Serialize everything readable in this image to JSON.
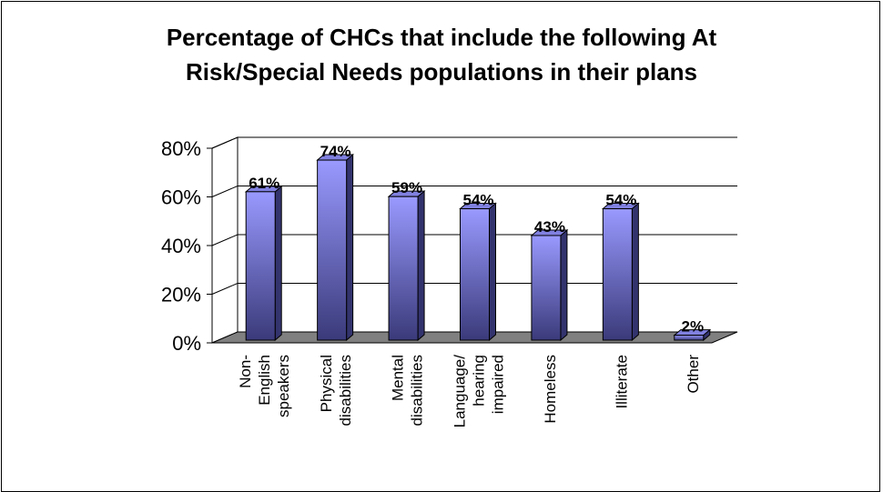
{
  "chart_data": {
    "type": "bar",
    "title_lines": [
      "Percentage of CHCs that include the following At",
      "Risk/Special Needs populations in their plans"
    ],
    "categories": [
      [
        "Non-",
        "English",
        "speakers"
      ],
      [
        "Physical",
        "disabilities"
      ],
      [
        "Mental",
        "disabilities"
      ],
      [
        "Language/",
        "hearing",
        "impaired"
      ],
      [
        "Homeless"
      ],
      [
        "Illiterate"
      ],
      [
        "Other"
      ]
    ],
    "values": [
      61,
      74,
      59,
      54,
      43,
      54,
      2
    ],
    "value_labels": [
      "61%",
      "74%",
      "59%",
      "54%",
      "43%",
      "54%",
      "2%"
    ],
    "y_ticks": [
      0,
      20,
      40,
      60,
      80
    ],
    "y_tick_labels": [
      "0%",
      "20%",
      "40%",
      "60%",
      "80%"
    ],
    "ylim": [
      0,
      80
    ],
    "grid": true,
    "style_3d": true,
    "colors": {
      "bar_top": "#9999ff",
      "bar_bottom": "#3a3a7a",
      "bar_side": "#33336e",
      "bar_cap": "#8080e0",
      "floor": "#808080",
      "grid": "#000000"
    }
  }
}
